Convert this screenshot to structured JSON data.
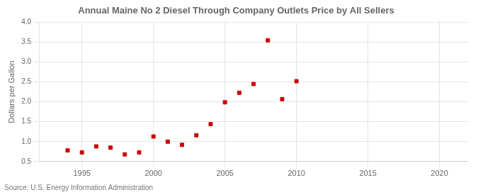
{
  "chart_data": {
    "type": "scatter",
    "title": "Annual Maine No 2 Diesel Through Company Outlets Price by All Sellers",
    "ylabel": "Dollars per Gallon",
    "annotations": [
      "Source: U.S. Energy Information Administration"
    ],
    "x": [
      1994,
      1995,
      1996,
      1997,
      1998,
      1999,
      2000,
      2001,
      2002,
      2003,
      2004,
      2005,
      2006,
      2007,
      2008,
      2009,
      2010
    ],
    "values": [
      0.78,
      0.73,
      0.88,
      0.85,
      0.68,
      0.73,
      1.13,
      1.0,
      0.92,
      1.16,
      1.44,
      1.99,
      2.23,
      2.45,
      3.55,
      2.07,
      2.52
    ],
    "color": "#cc0000",
    "marker": "square",
    "xlim": [
      1992,
      2022
    ],
    "xticks": [
      1995,
      2000,
      2005,
      2010,
      2015,
      2020
    ],
    "ylim": [
      0.5,
      4.0
    ],
    "yticks": [
      0.5,
      {
        "value": 1,
        "label": "1.0"
      },
      1.5,
      {
        "value": 2,
        "label": "2.0"
      },
      2.5,
      {
        "value": 3,
        "label": "3.0"
      },
      3.5,
      {
        "value": 4,
        "label": "4.0"
      }
    ],
    "grid": true
  }
}
